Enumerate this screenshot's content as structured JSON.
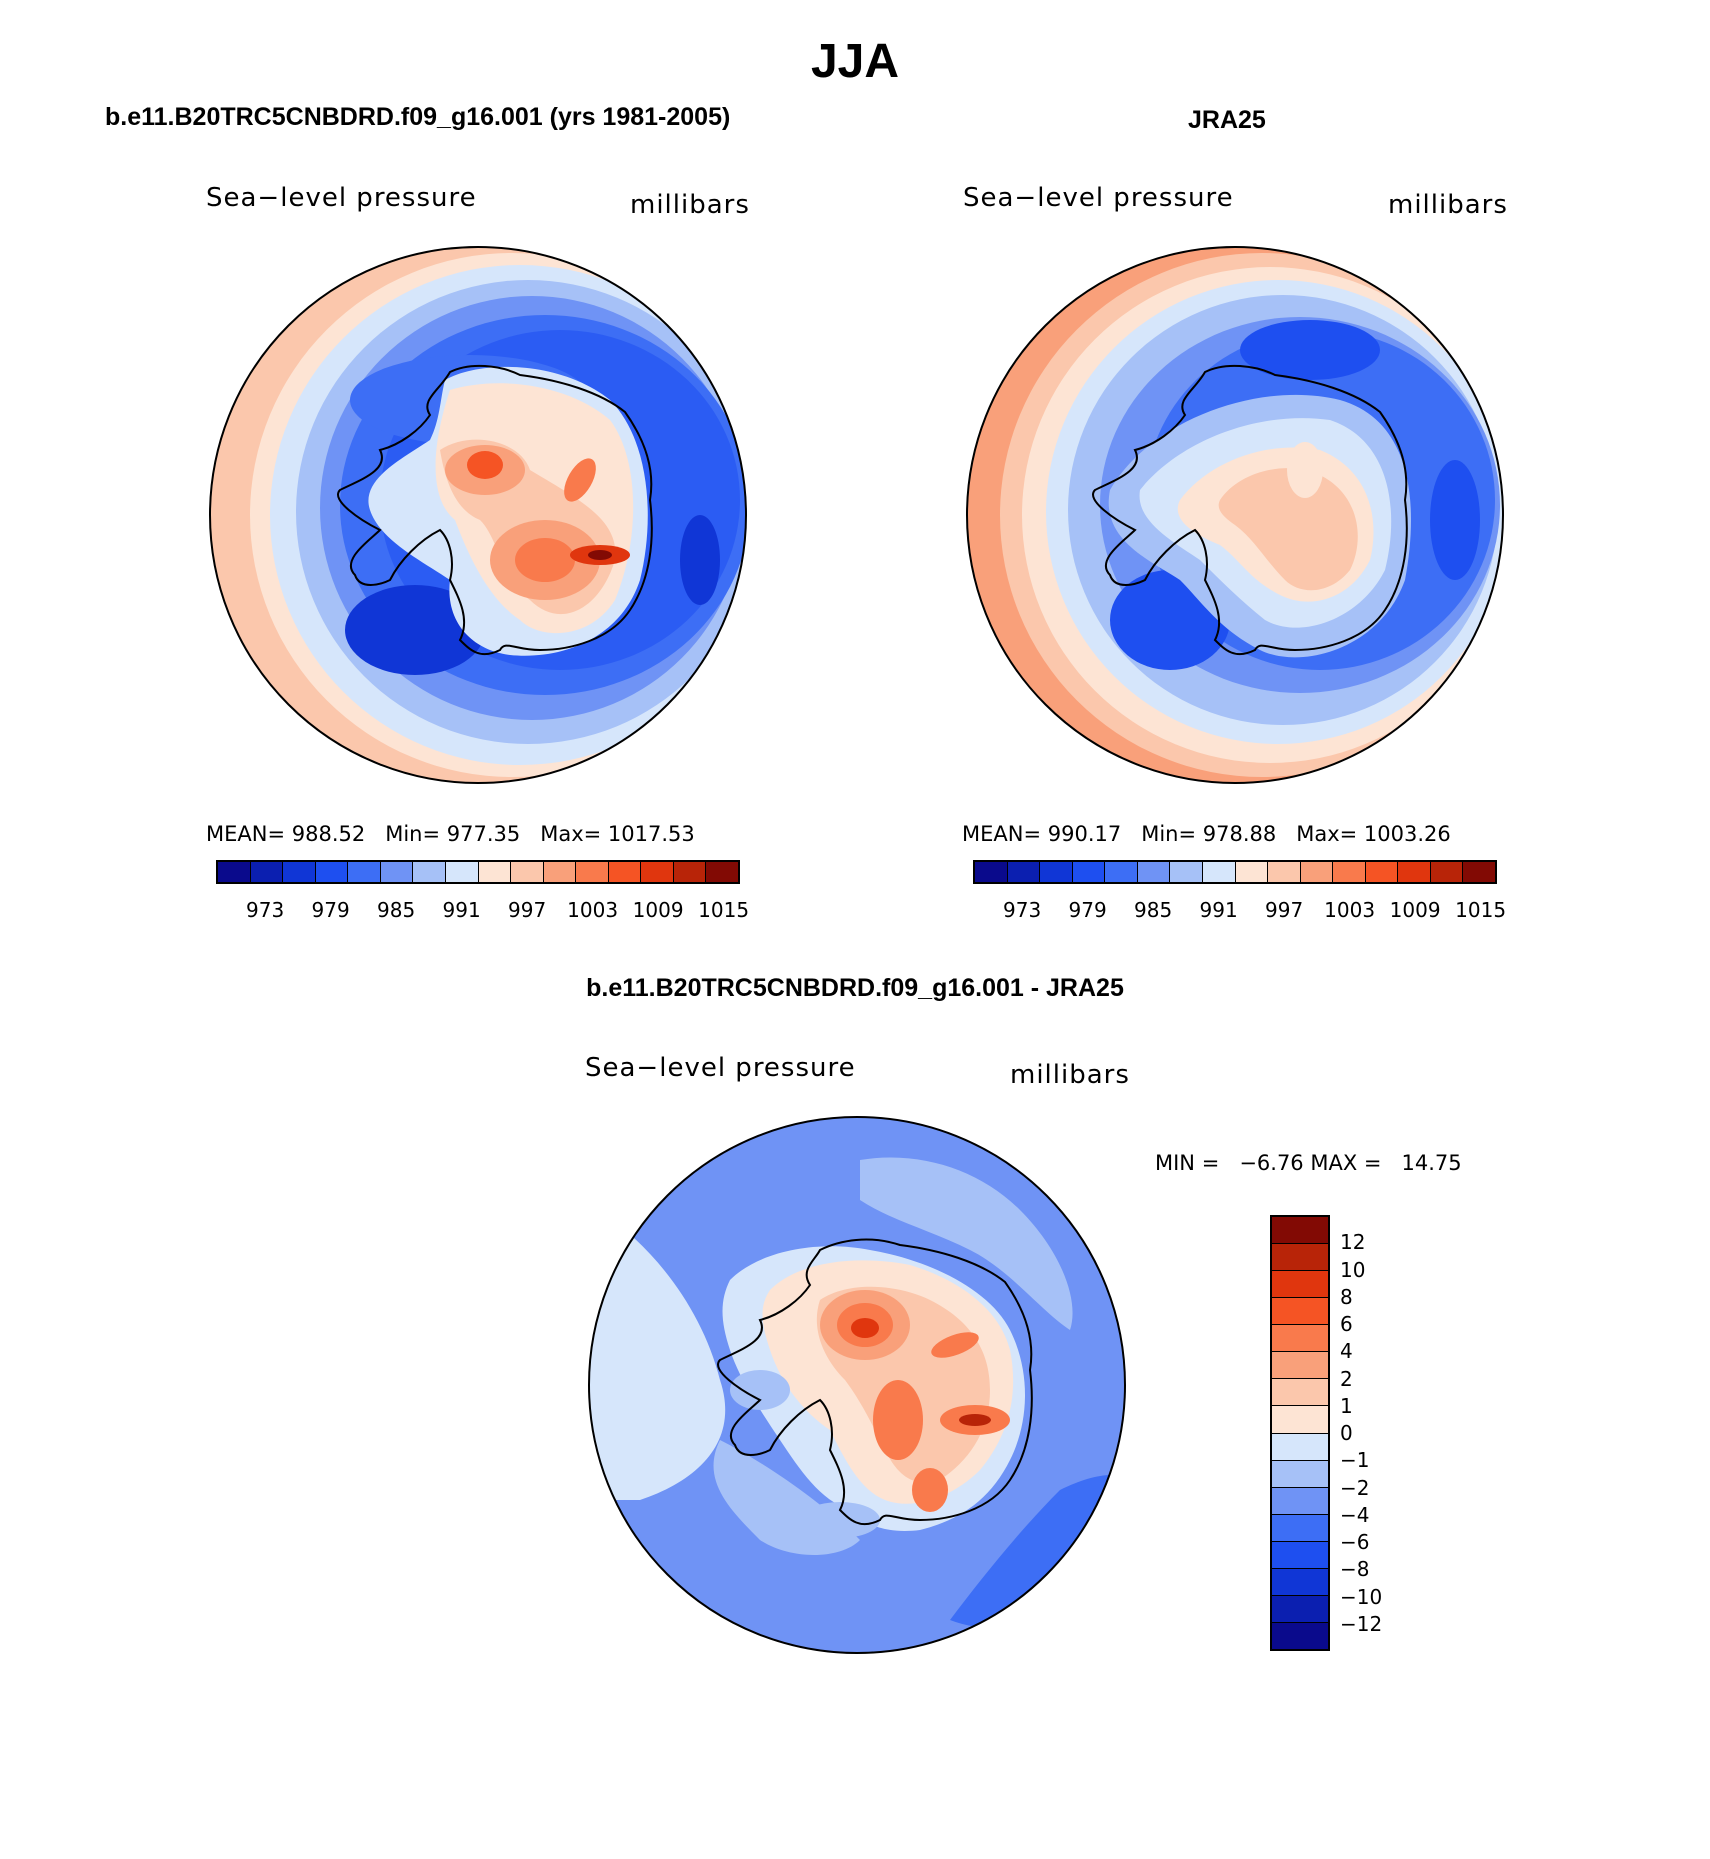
{
  "title": "JJA",
  "panels": {
    "model": {
      "title": "b.e11.B20TRC5CNBDRD.f09_g16.001 (yrs 1981-2005)",
      "left_label": "Sea−level pressure",
      "right_label": "millibars",
      "mean": "MEAN= 988.52",
      "min": "Min= 977.35",
      "max": "Max= 1017.53"
    },
    "obs": {
      "title": "JRA25",
      "left_label": "Sea−level pressure",
      "right_label": "millibars",
      "mean": "MEAN= 990.17",
      "min": "Min= 978.88",
      "max": "Max= 1003.26"
    },
    "diff": {
      "title": "b.e11.B20TRC5CNBDRD.f09_g16.001 - JRA25",
      "left_label": "Sea−level pressure",
      "right_label": "millibars",
      "minmax": "MIN =   −6.76 MAX =   14.75"
    }
  },
  "colorbar_abs": {
    "colors": [
      "#0a0a8c",
      "#0b1fb0",
      "#1036d6",
      "#1e4ff0",
      "#3d6ef5",
      "#6f93f5",
      "#a6c1f7",
      "#d6e6fb",
      "#fde4d4",
      "#fbc7ac",
      "#f9a07a",
      "#f97a4c",
      "#f55424",
      "#e0360e",
      "#b82408",
      "#820a04"
    ],
    "labels": [
      "973",
      "979",
      "985",
      "991",
      "997",
      "1003",
      "1009",
      "1015"
    ]
  },
  "colorbar_diff": {
    "colors": [
      "#820a04",
      "#b82408",
      "#e0360e",
      "#f55424",
      "#f97a4c",
      "#f9a07a",
      "#fbc7ac",
      "#fde4d4",
      "#d6e6fb",
      "#a6c1f7",
      "#6f93f5",
      "#3d6ef5",
      "#1e4ff0",
      "#1036d6",
      "#0b1fb0",
      "#0a0a8c"
    ],
    "labels": [
      "12",
      "10",
      "8",
      "6",
      "4",
      "2",
      "1",
      "0",
      "−1",
      "−2",
      "−4",
      "−6",
      "−8",
      "−10",
      "−12"
    ]
  }
}
